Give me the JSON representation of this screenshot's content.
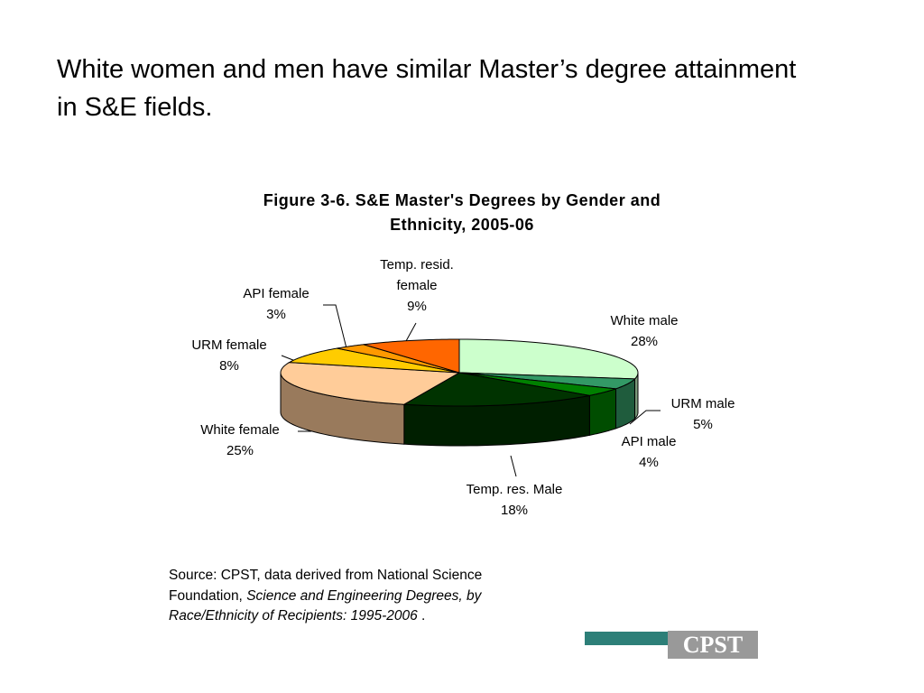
{
  "heading": "White women and men have similar Master’s degree attainment in S&E fields.",
  "chart_data": {
    "type": "pie3d",
    "title": "Figure 3-6. S&E Master's Degrees by Gender and Ethnicity, 2005-06",
    "categories": [
      "White male",
      "URM male",
      "API male",
      "Temp. res. Male",
      "White female",
      "URM female",
      "API female",
      "Temp. resid. female"
    ],
    "values": [
      28,
      5,
      4,
      18,
      25,
      8,
      3,
      9
    ],
    "value_labels": [
      "28%",
      "5%",
      "4%",
      "18%",
      "25%",
      "8%",
      "3%",
      "9%"
    ],
    "colors": [
      "#ccffcc",
      "#339966",
      "#008000",
      "#003300",
      "#ffcc99",
      "#ffcc00",
      "#ff9900",
      "#ff6600"
    ]
  },
  "source": {
    "prefix": "Source: CPST, data derived from National Science Foundation, ",
    "italic": "Science and Engineering Degrees, by Race/Ethnicity of Recipients: 1995-2006",
    "suffix": " ."
  },
  "logo": "CPST"
}
